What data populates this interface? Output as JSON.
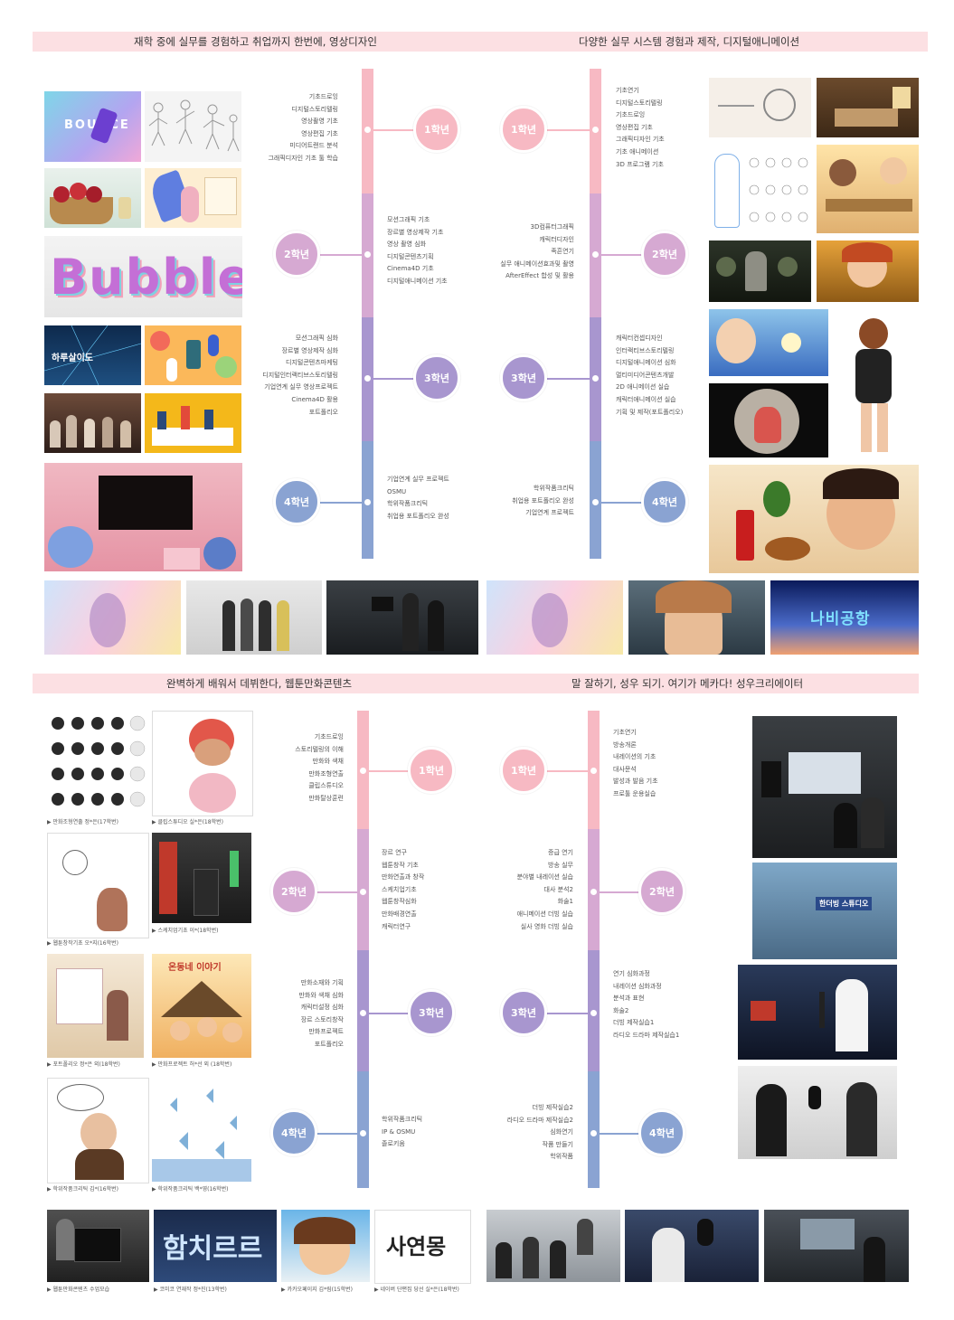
{
  "banners": {
    "video_design": "재학 중에 실무를 경험하고 취업까지 한번에, 영상디자인",
    "animation": "다양한 실무 시스템 경험과 제작, 디지털애니메이션",
    "webtoon": "완벽하게 배워서 데뷔한다, 웹툰만화콘텐츠",
    "voice": "말 잘하기, 성우 되기. 여기가 메카다! 성우크리에이터"
  },
  "years": [
    "1학년",
    "2학년",
    "3학년",
    "4학년"
  ],
  "video_design": {
    "y1": [
      "기초드로잉",
      "디지털스토리텔링",
      "영상촬영 기초",
      "영상편집 기초",
      "미디어트랜드 분석",
      "그래픽디자인 기초 툴 학습"
    ],
    "y2": [
      "모션그래픽 기초",
      "장르별 영상제작 기초",
      "영상 촬영 심화",
      "디지털콘텐츠기획",
      "Cinema4D 기초",
      "디지털애니메이션 기초"
    ],
    "y3": [
      "모션그래픽 심화",
      "장르별 영상제작 심화",
      "디지털콘텐츠마케팅",
      "디지털인터랙티브스토리텔링",
      "기업연계 실무 영상프로젝트",
      "Cinema4D 활용",
      "포트폴리오"
    ],
    "y4": [
      "기업연계 실무 프로젝트",
      "OSMU",
      "학위작품크리틱",
      "취업용 포트폴리오 완성"
    ]
  },
  "animation": {
    "y1": [
      "기초연기",
      "디지털스토리텔링",
      "기초드로잉",
      "영상편집 기초",
      "그래픽디자인 기초",
      "기초 애니메이션",
      "3D 프로그램 기초"
    ],
    "y2": [
      "3D컴퓨터그래픽",
      "캐릭터디자인",
      "족흔연기",
      "실무 애니메이션효과및 촬영",
      "AfterEffect 합성 및 활용"
    ],
    "y3": [
      "캐릭터컨셉디자인",
      "인터랙티브스토리텔링",
      "디지털애니메이션 심화",
      "멀티미디어콘텐츠개발",
      "2D 애니메이션 실습",
      "캐릭터애니메이션 실습",
      "기획 및 제작(포트폴리오)"
    ],
    "y4": [
      "학위작품크리틱",
      "취업용 포트폴리오 완성",
      "기업연계 프로젝트"
    ]
  },
  "webtoon": {
    "y1": [
      "기초드로잉",
      "스토리텔링의 이해",
      "만화와 색채",
      "만화조형연출",
      "클립스튜디오",
      "만화탈상훈련"
    ],
    "y2": [
      "장르 연구",
      "웹툰창작 기초",
      "만화연출과 창작",
      "스케치업기초",
      "웹툰창작심화",
      "만화배경연출",
      "캐릭터연구"
    ],
    "y3": [
      "만화소재와 기획",
      "만화와 색채 심화",
      "캐릭터설정 심화",
      "장르 스토리창작",
      "만화프로젝트",
      "포트폴리오"
    ],
    "y4": [
      "학위작품크리틱",
      "IP & OSMU",
      "졸로키움"
    ]
  },
  "voice": {
    "y1": [
      "기초연기",
      "방송개론",
      "내레이션의 기초",
      "대사문석",
      "발성과 발음 기초",
      "프로툴 운용실습"
    ],
    "y2": [
      "증급 연기",
      "방송 실무",
      "분야별 내레이션 실습",
      "대사 분석2",
      "화술1",
      "애니메이션 더빙 실습",
      "실사 영화 더빙 실습"
    ],
    "y3": [
      "연기 심화과정",
      "내레이션 심화과정",
      "분석과 표현",
      "화술2",
      "더빙 제작실습1",
      "라디오 드라마 제작실습1"
    ],
    "y4": [
      "더빙 제작실습2",
      "라디오 드라마 제작실습2",
      "심화연기",
      "작품 만들기",
      "학위작품"
    ]
  },
  "artwork_text": {
    "bubble": "Bubble",
    "haru": "하루살이도",
    "nabi": "나비공항",
    "hamchi": "함치르르",
    "sayeon": "사연몽",
    "ondongne": "온동네 이야기",
    "studio": "한더빙 스튜디오",
    "bounce": "BOUNCE"
  },
  "captions": {
    "w1a": "▶ 만화조형연출 정*은(17학번)",
    "w1b": "▶ 클립스튜디오 실*은(18학번)",
    "w2a": "▶ 웹툰창작기초 오*지(16학번)",
    "w2b": "▶ 스케치업기초 이*(18학번)",
    "w3a": "▶ 포트폴리오 정*은 외(18학번)",
    "w3b": "▶ 만화프로젝트 허*선 외 (18학번)",
    "w4a": "▶ 학위작품크리틱 김*(16학번)",
    "w4b": "▶ 학위작품크리틱 백*영(16학번)",
    "b1": "▶ 웹툰만화콘텐츠 수업모습",
    "b2": "▶ 코미코 연재작 정*진(13학번)",
    "b3": "▶ 카카오페이지 김*림(15학번)",
    "b4": "▶ 네이버 단편집 당선 실*은(18학번)"
  },
  "colors": {
    "y1": "#f7b9c3",
    "y2": "#d6a9d2",
    "y3": "#a896cf",
    "y4": "#8aa3d2",
    "banner": "#fce0e3"
  }
}
